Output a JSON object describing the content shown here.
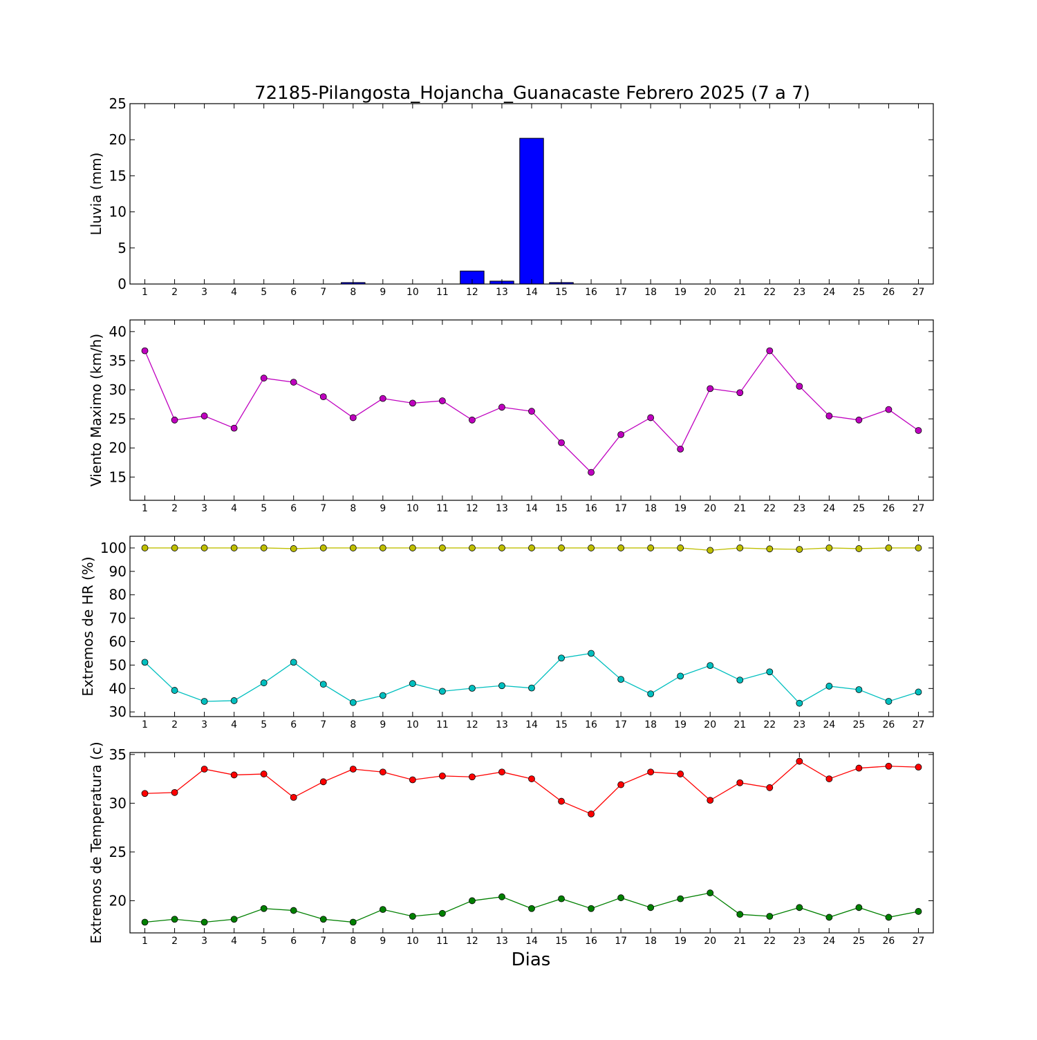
{
  "title": "72185-Pilangosta_Hojancha_Guanacaste Febrero 2025  (7 a 7)",
  "xlabel": "Dias",
  "chart_data": [
    {
      "type": "bar",
      "title": "72185-Pilangosta_Hojancha_Guanacaste Febrero 2025  (7 a 7)",
      "xlabel": "",
      "ylabel": "Lluvia (mm)",
      "xlim": [
        0.5,
        27.5
      ],
      "ylim": [
        0,
        25
      ],
      "yticks": [
        0,
        5,
        10,
        15,
        20,
        25
      ],
      "categories": [
        1,
        2,
        3,
        4,
        5,
        6,
        7,
        8,
        9,
        10,
        11,
        12,
        13,
        14,
        15,
        16,
        17,
        18,
        19,
        20,
        21,
        22,
        23,
        24,
        25,
        26,
        27
      ],
      "series": [
        {
          "color": "#0000ff",
          "values": [
            0,
            0,
            0,
            0,
            0,
            0,
            0,
            0.2,
            0,
            0,
            0,
            1.8,
            0.4,
            20.2,
            0.2,
            0,
            0,
            0,
            0,
            0,
            0,
            0,
            0,
            0,
            0,
            0,
            0
          ]
        }
      ],
      "grid": false,
      "legend": "none"
    },
    {
      "type": "line",
      "ylabel": "Viento Maximo (km/h)",
      "xlim": [
        0.5,
        27.5
      ],
      "ylim": [
        11,
        42
      ],
      "yticks": [
        15,
        20,
        25,
        30,
        35,
        40
      ],
      "x": [
        1,
        2,
        3,
        4,
        5,
        6,
        7,
        8,
        9,
        10,
        11,
        12,
        13,
        14,
        15,
        16,
        17,
        18,
        19,
        20,
        21,
        22,
        23,
        24,
        25,
        26,
        27
      ],
      "series": [
        {
          "color": "#bf00bf",
          "values": [
            36.7,
            24.8,
            25.5,
            23.4,
            32.0,
            31.3,
            28.8,
            25.2,
            28.5,
            27.7,
            28.1,
            24.8,
            27.0,
            26.3,
            20.9,
            15.8,
            22.3,
            25.2,
            19.8,
            30.2,
            29.5,
            36.7,
            30.6,
            25.5,
            24.8,
            26.6,
            23.0
          ]
        }
      ],
      "grid": false,
      "legend": "none"
    },
    {
      "type": "line",
      "ylabel": "Extremos de HR (%)",
      "xlim": [
        0.5,
        27.5
      ],
      "ylim": [
        28,
        105
      ],
      "yticks": [
        30,
        40,
        50,
        60,
        70,
        80,
        90,
        100
      ],
      "x": [
        1,
        2,
        3,
        4,
        5,
        6,
        7,
        8,
        9,
        10,
        11,
        12,
        13,
        14,
        15,
        16,
        17,
        18,
        19,
        20,
        21,
        22,
        23,
        24,
        25,
        26,
        27
      ],
      "series": [
        {
          "color": "#bfbf00",
          "values": [
            100,
            100,
            100,
            100,
            100,
            99.7,
            100,
            100,
            100,
            100,
            100,
            100,
            100,
            100,
            100,
            100,
            100,
            100,
            100,
            99.0,
            100,
            99.6,
            99.4,
            100,
            99.7,
            100,
            100
          ]
        },
        {
          "color": "#00bfbf",
          "values": [
            51.2,
            39.2,
            34.5,
            34.8,
            42.4,
            51.2,
            41.8,
            34.0,
            37.0,
            42.1,
            38.8,
            40.1,
            41.2,
            40.2,
            53.0,
            55.0,
            43.9,
            37.7,
            45.3,
            49.8,
            43.6,
            47.1,
            33.7,
            41.0,
            39.5,
            34.5,
            38.5
          ]
        }
      ],
      "grid": false,
      "legend": "none"
    },
    {
      "type": "line",
      "ylabel": "Extremos de Temperatura (c)",
      "xlim": [
        0.5,
        27.5
      ],
      "ylim": [
        16.7,
        35.2
      ],
      "yticks": [
        20,
        25,
        30,
        35
      ],
      "x": [
        1,
        2,
        3,
        4,
        5,
        6,
        7,
        8,
        9,
        10,
        11,
        12,
        13,
        14,
        15,
        16,
        17,
        18,
        19,
        20,
        21,
        22,
        23,
        24,
        25,
        26,
        27
      ],
      "xlabel": "Dias",
      "series": [
        {
          "color": "#ff0000",
          "values": [
            31.0,
            31.1,
            33.5,
            32.9,
            33.0,
            30.6,
            32.2,
            33.5,
            33.2,
            32.4,
            32.8,
            32.7,
            33.2,
            32.5,
            30.2,
            28.9,
            31.9,
            33.2,
            33.0,
            30.3,
            32.1,
            31.6,
            34.3,
            32.5,
            33.6,
            33.8,
            33.7
          ]
        },
        {
          "color": "#008000",
          "values": [
            17.8,
            18.1,
            17.8,
            18.1,
            19.2,
            19.0,
            18.1,
            17.8,
            19.1,
            18.4,
            18.7,
            20.0,
            20.4,
            19.2,
            20.2,
            19.2,
            20.3,
            19.3,
            20.2,
            20.8,
            18.6,
            18.4,
            19.3,
            18.3,
            19.3,
            18.3,
            18.9
          ]
        }
      ],
      "grid": false,
      "legend": "none"
    }
  ]
}
